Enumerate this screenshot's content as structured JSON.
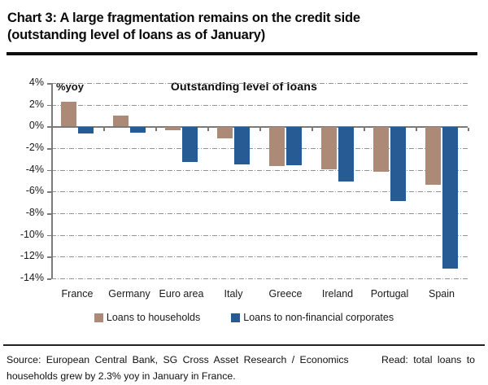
{
  "header": {
    "title_line1": "Chart 3: A large fragmentation remains on the credit side",
    "title_line2": "(outstanding level of loans as of January)"
  },
  "chart": {
    "inner_title": "Outstanding level of loans",
    "unit_label": "%yoy"
  },
  "chart_data": {
    "type": "bar",
    "title": "Outstanding level of loans",
    "ylabel": "%yoy",
    "categories": [
      "France",
      "Germany",
      "Euro area",
      "Italy",
      "Greece",
      "Ireland",
      "Portugal",
      "Spain"
    ],
    "series": [
      {
        "name": "Loans to households",
        "color": "#ad8978",
        "values": [
          2.3,
          1.0,
          -0.3,
          -1.0,
          -3.6,
          -3.9,
          -4.1,
          -5.3
        ]
      },
      {
        "name": "Loans to non-financial corporates",
        "color": "#265c93",
        "values": [
          -0.6,
          -0.5,
          -3.2,
          -3.4,
          -3.5,
          -5.0,
          -6.8,
          -13.0
        ]
      }
    ],
    "ylim": [
      -14,
      4
    ],
    "ytick_step": 2,
    "ytick_suffix": "%",
    "grid": "horizontal-dashed",
    "legend_position": "bottom"
  },
  "colors": {
    "gridline": "#949494",
    "axis": "#7a7a7a",
    "households": "#ad8978",
    "corporates": "#265c93"
  },
  "footer": {
    "line1_left": "Source: European Central Bank, SG Cross Asset Research / Economics",
    "line1_right": "Read: total loans to",
    "line2": "households grew by 2.3% yoy in January in France."
  }
}
